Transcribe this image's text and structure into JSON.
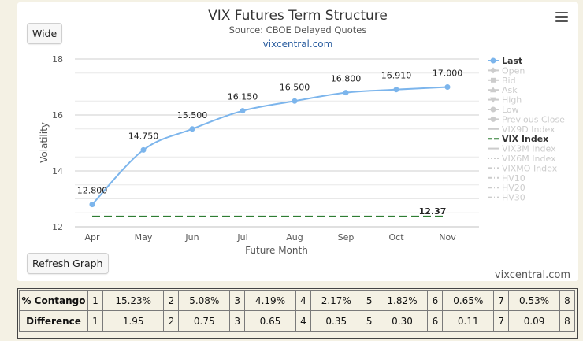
{
  "chart": {
    "title": "VIX Futures Term Structure",
    "subtitle": "Source: CBOE Delayed Quotes",
    "site_link": "vixcentral.com",
    "watermark": "vixcentral.com",
    "wide_label": "Wide",
    "refresh_label": "Refresh Graph",
    "menu_icon": "hamburger-menu-icon"
  },
  "chart_data": {
    "type": "line",
    "title": "VIX Futures Term Structure",
    "subtitle": "Source: CBOE Delayed Quotes",
    "xlabel": "Future Month",
    "ylabel": "Volatility",
    "categories": [
      "Apr",
      "May",
      "Jun",
      "Jul",
      "Aug",
      "Sep",
      "Oct",
      "Nov"
    ],
    "ylim": [
      12,
      18
    ],
    "yticks": [
      12,
      14,
      16,
      18
    ],
    "grid": true,
    "legend_position": "right",
    "series": [
      {
        "name": "Last",
        "color": "#7cb5ec",
        "values": [
          12.8,
          14.75,
          15.5,
          16.15,
          16.5,
          16.8,
          16.91,
          17.0
        ],
        "labels": [
          "12.800",
          "14.750",
          "15.500",
          "16.150",
          "16.500",
          "16.800",
          "16.910",
          "17.000"
        ]
      },
      {
        "name": "VIX Index",
        "color": "#2e7d32",
        "dashed": true,
        "values": [
          12.37,
          12.37,
          12.37,
          12.37,
          12.37,
          12.37,
          12.37,
          12.37
        ],
        "end_label": "12.37"
      }
    ],
    "legend": [
      {
        "name": "Last",
        "active": true,
        "marker": "circle"
      },
      {
        "name": "Open",
        "active": false,
        "marker": "diamond"
      },
      {
        "name": "Bid",
        "active": false,
        "marker": "square"
      },
      {
        "name": "Ask",
        "active": false,
        "marker": "triangle"
      },
      {
        "name": "High",
        "active": false,
        "marker": "triangle-down"
      },
      {
        "name": "Low",
        "active": false,
        "marker": "circle"
      },
      {
        "name": "Previous Close",
        "active": false,
        "marker": "circle"
      },
      {
        "name": "VIX9D Index",
        "active": false,
        "marker": "line"
      },
      {
        "name": "VIX Index",
        "active": true,
        "marker": "dash"
      },
      {
        "name": "VIX3M Index",
        "active": false,
        "marker": "line"
      },
      {
        "name": "VIX6M Index",
        "active": false,
        "marker": "dotted"
      },
      {
        "name": "VIXMO Index",
        "active": false,
        "marker": "dashdot"
      },
      {
        "name": "HV10",
        "active": false,
        "marker": "dashdot"
      },
      {
        "name": "HV20",
        "active": false,
        "marker": "dashdot"
      },
      {
        "name": "HV30",
        "active": false,
        "marker": "dashdot"
      }
    ]
  },
  "table": {
    "rows": [
      {
        "header": "% Contango",
        "cells": [
          "1",
          "15.23%",
          "2",
          "5.08%",
          "3",
          "4.19%",
          "4",
          "2.17%",
          "5",
          "1.82%",
          "6",
          "0.65%",
          "7",
          "0.53%",
          "8"
        ]
      },
      {
        "header": "Difference",
        "cells": [
          "1",
          "1.95",
          "2",
          "0.75",
          "3",
          "0.65",
          "4",
          "0.35",
          "5",
          "0.30",
          "6",
          "0.11",
          "7",
          "0.09",
          "8"
        ]
      }
    ]
  }
}
